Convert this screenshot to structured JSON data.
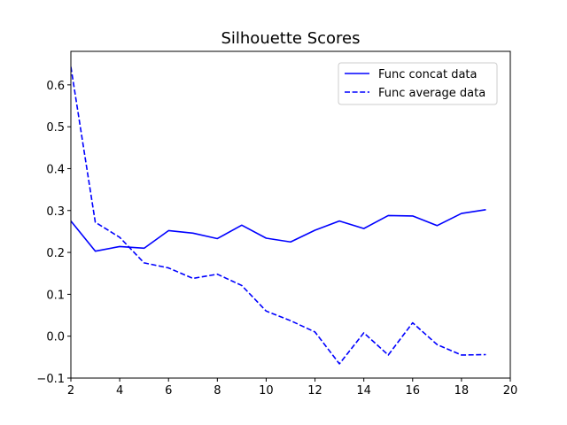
{
  "chart_data": {
    "type": "line",
    "title": "Silhouette Scores",
    "xlabel": "",
    "ylabel": "",
    "xlim": [
      2,
      20
    ],
    "ylim": [
      -0.1,
      0.68
    ],
    "xticks": [
      2,
      4,
      6,
      8,
      10,
      12,
      14,
      16,
      18,
      20
    ],
    "yticks": [
      -0.1,
      0.0,
      0.1,
      0.2,
      0.3,
      0.4,
      0.5,
      0.6
    ],
    "ytick_labels": [
      "−0.1",
      "0.0",
      "0.1",
      "0.2",
      "0.3",
      "0.4",
      "0.5",
      "0.6"
    ],
    "grid": false,
    "legend_position": "top-right",
    "x": [
      2,
      3,
      4,
      5,
      6,
      7,
      8,
      9,
      10,
      11,
      12,
      13,
      14,
      15,
      16,
      17,
      18,
      19
    ],
    "series": [
      {
        "name": "Func concat data",
        "style": "solid",
        "color": "#0000ff",
        "values": [
          0.275,
          0.203,
          0.214,
          0.21,
          0.252,
          0.246,
          0.233,
          0.265,
          0.234,
          0.225,
          0.253,
          0.275,
          0.257,
          0.288,
          0.287,
          0.264,
          0.293,
          0.302
        ]
      },
      {
        "name": "Func average data",
        "style": "dashed",
        "color": "#0000ff",
        "values": [
          0.643,
          0.272,
          0.236,
          0.175,
          0.163,
          0.138,
          0.148,
          0.121,
          0.06,
          0.037,
          0.01,
          -0.066,
          0.008,
          -0.045,
          0.032,
          -0.02,
          -0.045,
          -0.044
        ]
      }
    ]
  }
}
